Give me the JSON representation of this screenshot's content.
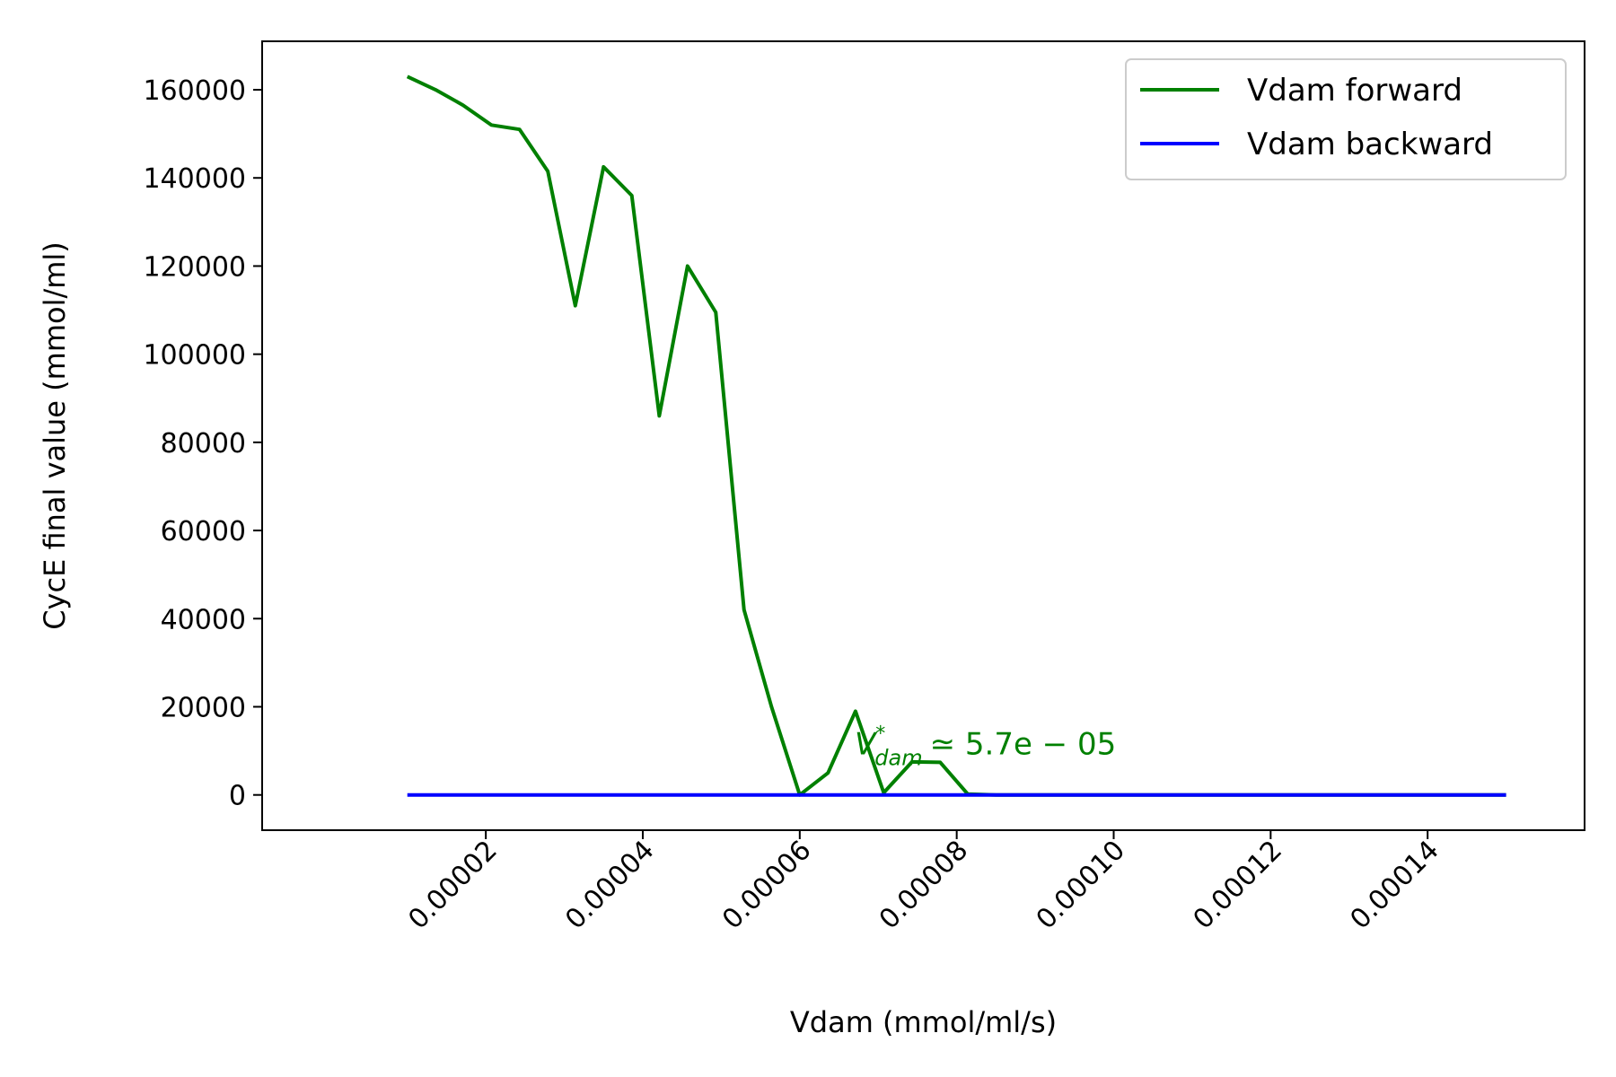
{
  "chart_data": {
    "type": "line",
    "title": "",
    "xlabel": "Vdam (mmol/ml/s)",
    "ylabel": "CycE final value (mmol/ml)",
    "xlim": [
      -8.5e-06,
      0.00016
    ],
    "ylim": [
      -8000,
      171000
    ],
    "xticks": [
      2e-05,
      4e-05,
      6e-05,
      8e-05,
      0.0001,
      0.00012,
      0.00014
    ],
    "xtick_labels": [
      "0.00002",
      "0.00004",
      "0.00006",
      "0.00008",
      "0.00010",
      "0.00012",
      "0.00014"
    ],
    "yticks": [
      0,
      20000,
      40000,
      60000,
      80000,
      100000,
      120000,
      140000,
      160000
    ],
    "ytick_labels": [
      "0",
      "20000",
      "40000",
      "60000",
      "80000",
      "100000",
      "120000",
      "140000",
      "160000"
    ],
    "grid": false,
    "legend_position": "top-right",
    "series": [
      {
        "name": "Vdam forward",
        "color": "#008000",
        "x": [
          1e-05,
          1.36e-05,
          1.71e-05,
          2.07e-05,
          2.43e-05,
          2.79e-05,
          3.14e-05,
          3.5e-05,
          3.86e-05,
          4.21e-05,
          4.57e-05,
          4.93e-05,
          5.29e-05,
          5.64e-05,
          6e-05,
          6.36e-05,
          6.71e-05,
          7.07e-05,
          7.43e-05,
          7.79e-05,
          8.14e-05,
          8.5e-05,
          9e-05,
          0.0001,
          0.00011,
          0.00012,
          0.00013,
          0.00014,
          0.00015
        ],
        "y": [
          163000,
          160000,
          156500,
          152000,
          151000,
          141500,
          111000,
          142500,
          136000,
          86000,
          120000,
          109500,
          42000,
          20000,
          0,
          5000,
          19000,
          500,
          7500,
          7400,
          200,
          0,
          0,
          0,
          0,
          0,
          0,
          0,
          0
        ]
      },
      {
        "name": "Vdam backward",
        "color": "#0000ff",
        "x": [
          1e-05,
          3e-05,
          5e-05,
          7e-05,
          9e-05,
          0.00011,
          0.00013,
          0.00015
        ],
        "y": [
          0,
          0,
          0,
          0,
          0,
          0,
          0,
          0
        ]
      }
    ],
    "annotations": [
      {
        "symbol": "V",
        "superscript": "*",
        "subscript": "dam",
        "relation": "≃ 5.7e − 05",
        "x": 6.7e-05,
        "y": 10000,
        "color": "#008000"
      }
    ]
  }
}
